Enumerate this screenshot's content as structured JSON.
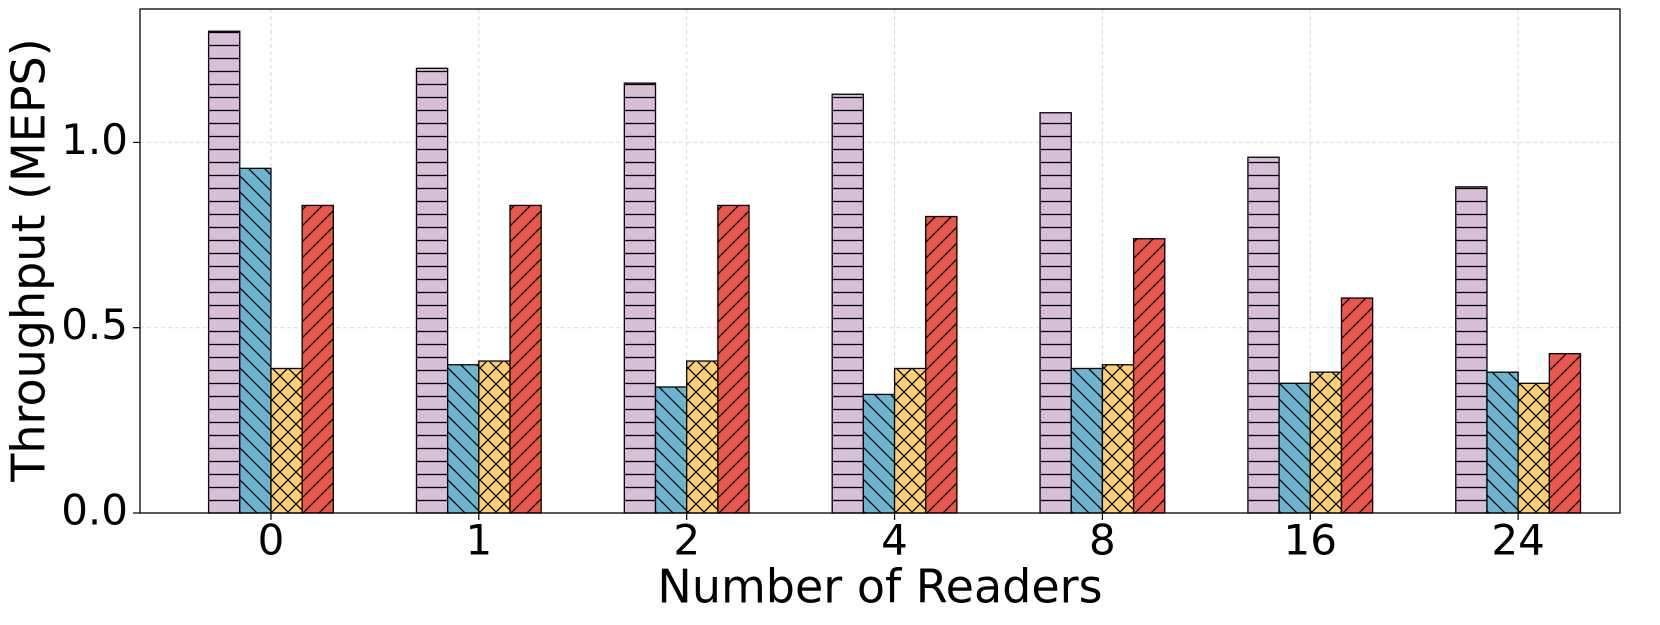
{
  "chart_data": {
    "type": "bar",
    "x_label": "Number of Readers",
    "y_label": "Throughput (MEPS)",
    "categories": [
      "0",
      "1",
      "2",
      "4",
      "8",
      "16",
      "24"
    ],
    "series": [
      {
        "color": "#d8bfd8",
        "hatch": "-",
        "values": [
          1.3,
          1.2,
          1.16,
          1.13,
          1.08,
          0.96,
          0.88
        ]
      },
      {
        "color": "#6bb5d1",
        "hatch": "\\",
        "values": [
          0.93,
          0.4,
          0.34,
          0.32,
          0.39,
          0.35,
          0.38
        ]
      },
      {
        "color": "#fdd173",
        "hatch": "x",
        "values": [
          0.39,
          0.41,
          0.41,
          0.39,
          0.4,
          0.38,
          0.35
        ]
      },
      {
        "color": "#e8574a",
        "hatch": "/",
        "values": [
          0.83,
          0.83,
          0.83,
          0.8,
          0.74,
          0.58,
          0.43
        ]
      }
    ],
    "ylim": [
      0,
      1.36
    ],
    "yticks": [
      {
        "value": 0,
        "label": "0.0"
      },
      0.5,
      {
        "value": 1,
        "label": "1.0"
      }
    ],
    "grid": true
  }
}
